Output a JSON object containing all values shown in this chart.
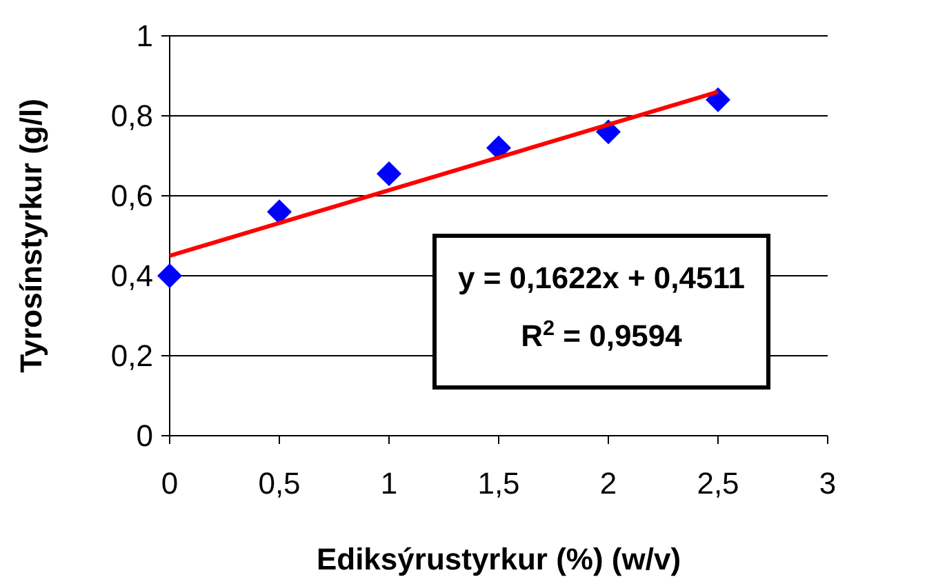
{
  "chart_data": {
    "type": "scatter",
    "xlabel": "Ediksýrustyrkur (%) (w/v)",
    "ylabel": "Tyrosínstyrkur (g/l)",
    "x": [
      0,
      0.5,
      1,
      1.5,
      2,
      2.5
    ],
    "series": [
      {
        "color": "#0000ff",
        "marker": "diamond",
        "values": [
          0.4,
          0.56,
          0.655,
          0.72,
          0.76,
          0.84
        ]
      },
      {
        "type": "line",
        "color": "#ff0000",
        "marker": "none",
        "x": [
          0,
          2.5
        ],
        "values": [
          0.45,
          0.86
        ]
      }
    ],
    "xlim": [
      0,
      3
    ],
    "xticks": [
      0,
      {
        "value": 0.5,
        "label": "0,5"
      },
      1,
      {
        "value": 1.5,
        "label": "1,5"
      },
      2,
      {
        "value": 2.5,
        "label": "2,5"
      },
      3
    ],
    "ylim": [
      0,
      1
    ],
    "yticks": [
      0,
      {
        "value": 0.2,
        "label": "0,2"
      },
      {
        "value": 0.4,
        "label": "0,4"
      },
      {
        "value": 0.6,
        "label": "0,6"
      },
      {
        "value": 0.8,
        "label": "0,8"
      },
      1
    ],
    "grid": "y",
    "annotations": [
      "y = 0,1622x + 0,4511",
      "R$^{2}$ = 0,9594"
    ]
  }
}
